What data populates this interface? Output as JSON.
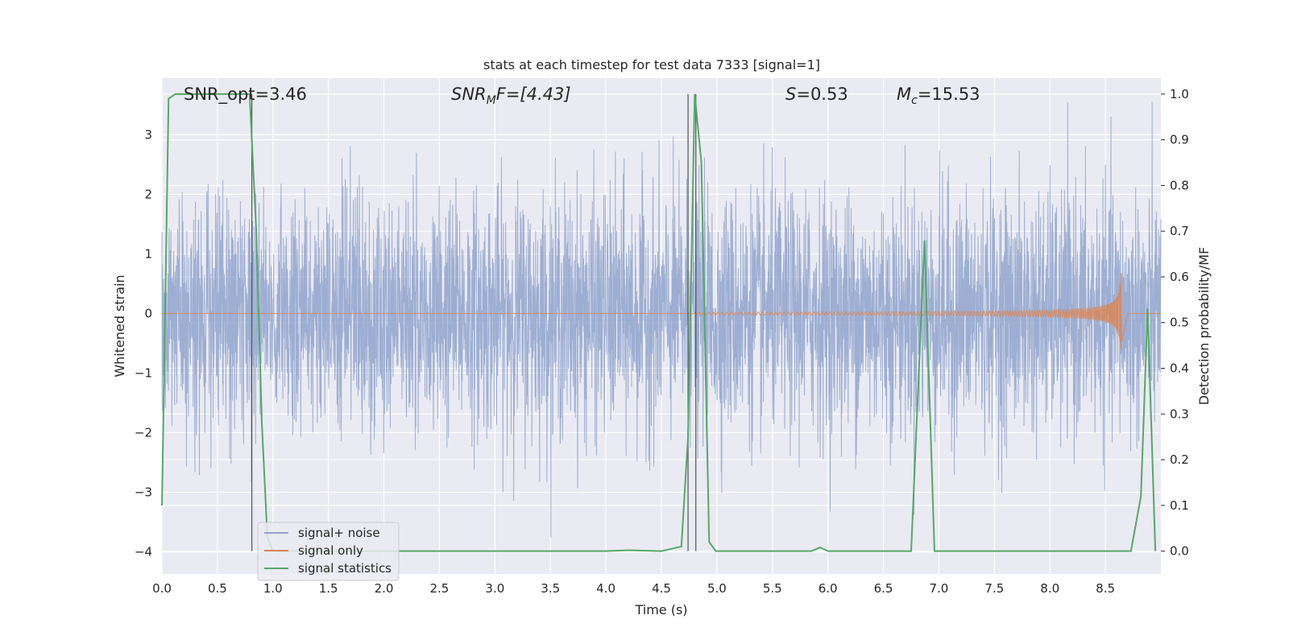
{
  "chart_data": {
    "type": "line",
    "title": "stats at each timestep for test data 7333 [signal=1]",
    "xlabel": "Time (s)",
    "ylabel": "Whitened strain",
    "y2label": "Detection probability/MF",
    "xlim": [
      0.0,
      9.0
    ],
    "ylim": [
      -4.37,
      3.95
    ],
    "y2lim": [
      -0.05,
      1.035
    ],
    "x_ticks": [
      "0.0",
      "0.5",
      "1.0",
      "1.5",
      "2.0",
      "2.5",
      "3.0",
      "3.5",
      "4.0",
      "4.5",
      "5.0",
      "5.5",
      "6.0",
      "6.5",
      "7.0",
      "7.5",
      "8.0",
      "8.5"
    ],
    "y_ticks": [
      "3",
      "2",
      "1",
      "0",
      "−1",
      "−2",
      "−3",
      "−4"
    ],
    "y2_ticks": [
      "1.0",
      "0.9",
      "0.8",
      "0.7",
      "0.6",
      "0.5",
      "0.4",
      "0.3",
      "0.2",
      "0.1",
      "0.0"
    ],
    "grid": true,
    "legend_placement": "lower-left",
    "annotations": {
      "snr_opt": "SNR_opt=3.46",
      "snr_mf_base": "SNR",
      "snr_mf_sub": "M",
      "snr_mf_rest": "F=[4.43]",
      "s_base": "S",
      "s_rest": "=0.53",
      "mc_base": "M",
      "mc_sub": "c",
      "mc_rest": "=15.53"
    },
    "vertical_lines": [
      0.81,
      4.74,
      4.81
    ],
    "series": [
      {
        "name": "signal+ noise",
        "color": "#8fa3cd",
        "description_values": "whitened noise, approx N(0,1), spanning about −3.5 to 3.4",
        "noise_std": 1.0
      },
      {
        "name": "signal only",
        "color": "#dd8452",
        "chirp": {
          "start": 4.8,
          "end": 8.65,
          "peak_amplitude": 0.68
        }
      },
      {
        "name": "signal statistics",
        "color": "#55a868",
        "axis": "right",
        "x": [
          0.0,
          0.06,
          0.12,
          0.2,
          0.3,
          0.4,
          0.5,
          0.6,
          0.7,
          0.79,
          0.85,
          0.9,
          0.95,
          1.0,
          1.5,
          2.0,
          2.5,
          3.0,
          3.5,
          4.0,
          4.2,
          4.5,
          4.68,
          4.74,
          4.8,
          4.86,
          4.93,
          4.99,
          5.05,
          5.5,
          5.85,
          5.93,
          6.0,
          6.5,
          6.75,
          6.87,
          6.96,
          7.0,
          7.5,
          8.0,
          8.5,
          8.73,
          8.82,
          8.88,
          8.95
        ],
        "values": [
          0.1,
          0.99,
          1.0,
          1.0,
          1.0,
          1.0,
          1.0,
          1.0,
          1.0,
          1.0,
          0.7,
          0.28,
          0.03,
          0.0,
          0.0,
          0.0,
          0.0,
          0.0,
          0.0,
          0.0,
          0.002,
          0.0,
          0.01,
          0.25,
          1.0,
          0.85,
          0.02,
          0.0,
          0.0,
          0.0,
          0.0,
          0.008,
          0.0,
          0.0,
          0.0,
          0.68,
          0.0,
          0.0,
          0.0,
          0.0,
          0.0,
          0.0,
          0.12,
          0.53,
          0.0
        ]
      }
    ]
  }
}
